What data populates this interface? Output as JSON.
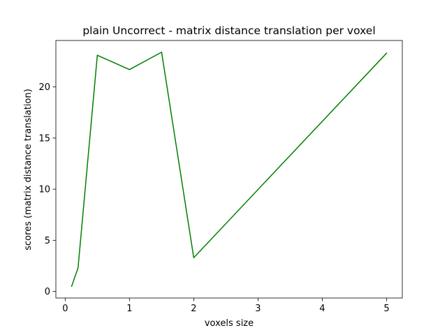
{
  "chart_data": {
    "type": "line",
    "title": "plain Uncorrect - matrix distance translation per voxel",
    "xlabel": "voxels size",
    "ylabel": "scores (matrix distance translation)",
    "x": [
      0.1,
      0.2,
      0.5,
      1.0,
      1.5,
      2.0,
      5.0
    ],
    "series": [
      {
        "values": [
          0.5,
          2.3,
          23.1,
          21.7,
          23.4,
          3.3,
          23.3
        ],
        "color": "#008000"
      }
    ],
    "xlim": [
      -0.145,
      5.245
    ],
    "ylim": [
      -0.645,
      24.545
    ],
    "xticks": [
      0,
      1,
      2,
      3,
      4,
      5
    ],
    "xtick_labels": [
      "0",
      "1",
      "2",
      "3",
      "4",
      "5"
    ],
    "yticks": [
      0,
      5,
      10,
      15,
      20
    ],
    "ytick_labels": [
      "0",
      "5",
      "10",
      "15",
      "20"
    ],
    "grid": false,
    "legend": "none"
  }
}
